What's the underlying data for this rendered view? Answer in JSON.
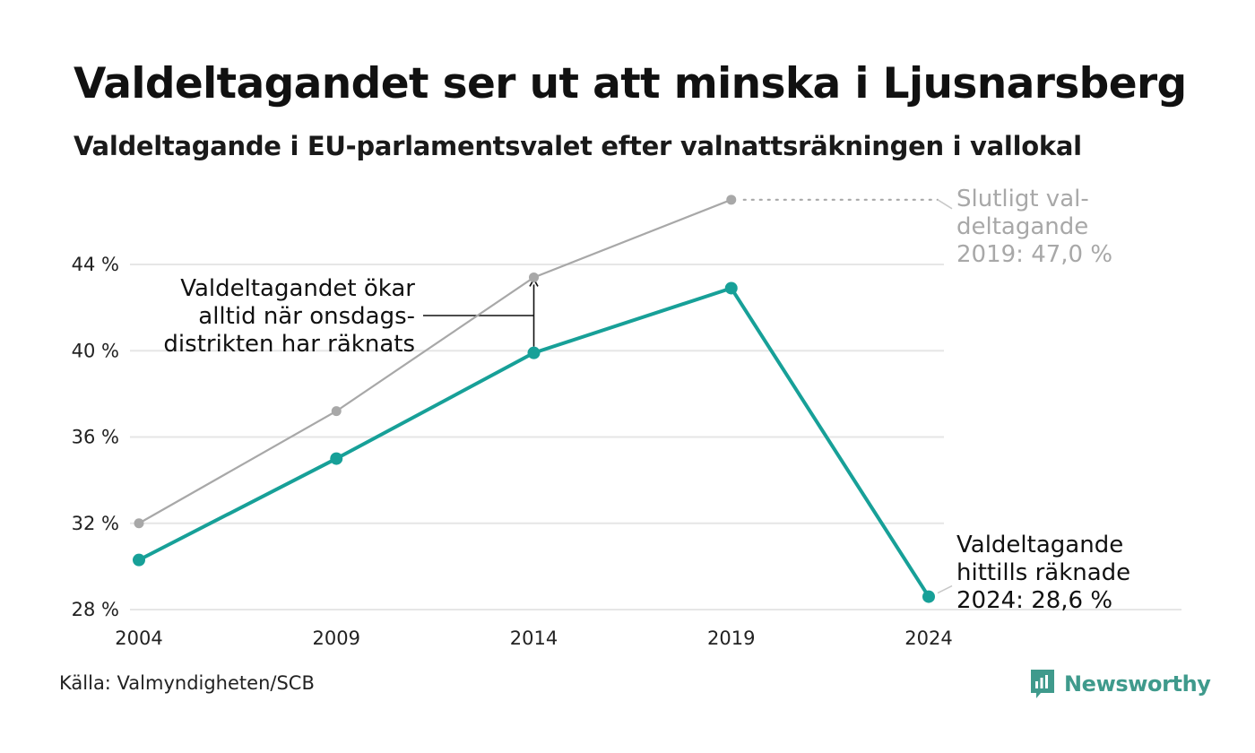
{
  "title": "Valdeltagandet ser ut att minska i Ljusnarsberg",
  "subtitle": "Valdeltagande i EU-parlamentsvalet efter valnattsräkningen i vallokal",
  "source": "Källa: Valmyndigheten/SCB",
  "brand": {
    "name": "Newsworthy",
    "color": "#3f9a8c"
  },
  "chart_data": {
    "type": "line",
    "x": [
      2004,
      2009,
      2014,
      2019,
      2024
    ],
    "ylim": [
      28,
      44
    ],
    "yticks": [
      {
        "value": 28,
        "label": "28 %"
      },
      {
        "value": 32,
        "label": "32 %"
      },
      {
        "value": 36,
        "label": "36 %"
      },
      {
        "value": 40,
        "label": "40 %"
      },
      {
        "value": 44,
        "label": "44 %"
      }
    ],
    "xticks": [
      {
        "value": 2004,
        "label": "2004"
      },
      {
        "value": 2009,
        "label": "2009"
      },
      {
        "value": 2014,
        "label": "2014"
      },
      {
        "value": 2019,
        "label": "2019"
      },
      {
        "value": 2024,
        "label": "2024"
      }
    ],
    "grid": true,
    "series": [
      {
        "id": "final",
        "color": "#a8a8a8",
        "points": [
          {
            "x": 2004,
            "y": 32.0
          },
          {
            "x": 2009,
            "y": 37.2
          },
          {
            "x": 2014,
            "y": 43.4
          },
          {
            "x": 2019,
            "y": 47.0
          }
        ]
      },
      {
        "id": "counted",
        "color": "#17a098",
        "points": [
          {
            "x": 2004,
            "y": 30.3
          },
          {
            "x": 2009,
            "y": 35.0
          },
          {
            "x": 2014,
            "y": 39.9
          },
          {
            "x": 2019,
            "y": 42.9
          },
          {
            "x": 2024,
            "y": 28.6
          }
        ]
      }
    ],
    "annotations": {
      "final_label": {
        "lines": [
          "Slutligt val-",
          "deltagande",
          "2019: 47,0 %"
        ],
        "color": "#a8a8a8"
      },
      "counted_label": {
        "lines": [
          "Valdeltagande",
          "hittills räknade",
          "2024: 28,6 %"
        ],
        "color": "#111111"
      },
      "arrow_note": {
        "lines": [
          "Valdeltagandet ökar",
          "alltid när onsdags-",
          "distrikten har räknats"
        ],
        "color": "#111111"
      }
    }
  }
}
